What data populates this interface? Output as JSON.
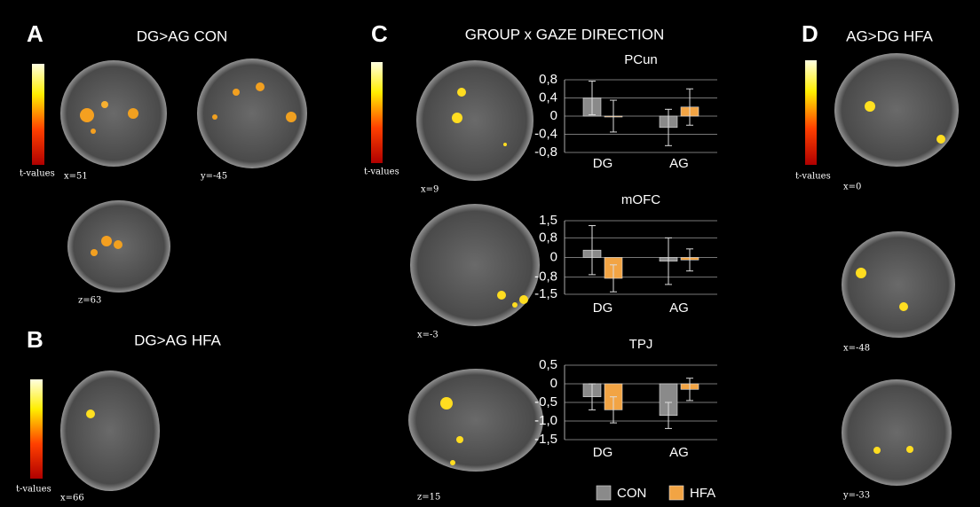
{
  "panels": [
    {
      "letter": "A",
      "title": "DG>AG CON",
      "coords": [
        "x=51",
        "y=-45",
        "z=63"
      ]
    },
    {
      "letter": "B",
      "title": "DG>AG HFA",
      "coords": [
        "x=66"
      ]
    },
    {
      "letter": "C",
      "title": "GROUP x GAZE DIRECTION",
      "coords": [
        "x=9",
        "x=-3",
        "z=15"
      ]
    },
    {
      "letter": "D",
      "title": "AG>DG HFA",
      "coords": [
        "x=0",
        "x=-48",
        "y=-33"
      ]
    }
  ],
  "colorbar_label": "t-values",
  "chart_data": [
    {
      "type": "bar",
      "title": "PCun",
      "categories": [
        "DG",
        "AG"
      ],
      "ylim": [
        -0.8,
        0.8
      ],
      "yticks": [
        {
          "value": 0.8,
          "label": "0,8"
        },
        {
          "value": 0.4,
          "label": "0,4"
        },
        0,
        {
          "value": -0.4,
          "label": "-0,4"
        },
        {
          "value": -0.8,
          "label": "-0,8"
        }
      ],
      "grid": true,
      "series": [
        {
          "name": "CON",
          "color": "#8a8a8a",
          "values": [
            0.4,
            -0.25
          ],
          "errors": [
            0.37,
            0.4
          ]
        },
        {
          "name": "HFA",
          "color": "#f2a444",
          "values": [
            0,
            0.2
          ],
          "errors": [
            0.35,
            0.4
          ]
        }
      ]
    },
    {
      "type": "bar",
      "title": "mOFC",
      "categories": [
        "DG",
        "AG"
      ],
      "ylim": [
        -1.5,
        1.5
      ],
      "yticks": [
        {
          "value": 1.5,
          "label": "1,5"
        },
        {
          "value": 0.8,
          "label": "0,8"
        },
        0,
        {
          "value": -0.8,
          "label": "-0,8"
        },
        {
          "value": -1.5,
          "label": "-1,5"
        }
      ],
      "grid": true,
      "series": [
        {
          "name": "CON",
          "color": "#8a8a8a",
          "values": [
            0.3,
            -0.15
          ],
          "errors": [
            1.0,
            0.95
          ]
        },
        {
          "name": "HFA",
          "color": "#f2a444",
          "values": [
            -0.85,
            -0.1
          ],
          "errors": [
            0.55,
            0.45
          ]
        }
      ]
    },
    {
      "type": "bar",
      "title": "TPJ",
      "categories": [
        "DG",
        "AG"
      ],
      "ylim": [
        -1.5,
        0.5
      ],
      "yticks": [
        {
          "value": 0.5,
          "label": "0,5"
        },
        0,
        {
          "value": -0.5,
          "label": "-0,5"
        },
        {
          "value": -1.0,
          "label": "-1,0"
        },
        {
          "value": -1.5,
          "label": "-1,5"
        }
      ],
      "grid": true,
      "series": [
        {
          "name": "CON",
          "color": "#8a8a8a",
          "values": [
            -0.35,
            -0.85
          ],
          "errors": [
            0.35,
            0.35
          ]
        },
        {
          "name": "HFA",
          "color": "#f2a444",
          "values": [
            -0.7,
            -0.15
          ],
          "errors": [
            0.35,
            0.3
          ]
        }
      ]
    }
  ]
}
